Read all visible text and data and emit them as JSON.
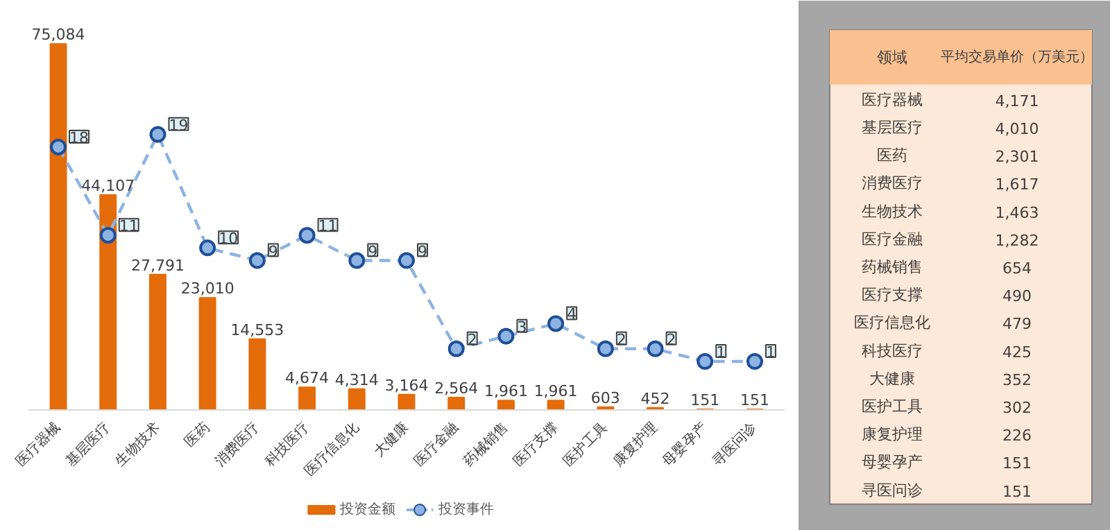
{
  "chart_data": [
    {
      "type": "bar",
      "categories": [
        "医疗器械",
        "基层医疗",
        "生物技术",
        "医药",
        "消费医疗",
        "科技医疗",
        "医疗信息化",
        "大健康",
        "医疗金融",
        "药械销售",
        "医疗支撑",
        "医护工具",
        "康复护理",
        "母婴孕产",
        "寻医问诊"
      ],
      "series": [
        {
          "name": "投资金额",
          "type": "bar",
          "color": "#e46c0a",
          "values": [
            75084,
            44107,
            27791,
            23010,
            14553,
            4674,
            4314,
            3164,
            2564,
            1961,
            1961,
            603,
            452,
            151,
            151
          ],
          "value_labels": [
            "75,084",
            "44,107",
            "27,791",
            "23,010",
            "14,553",
            "4,674",
            "4,314",
            "3,164",
            "2,564",
            "1,961",
            "1,961",
            "603",
            "452",
            "151",
            "151"
          ]
        },
        {
          "name": "投资事件",
          "type": "line",
          "axis": "y2",
          "color": "#8db4e2",
          "line_style": "dashed",
          "marker": "circle",
          "values": [
            18,
            11,
            19,
            10,
            9,
            11,
            9,
            9,
            2,
            3,
            4,
            2,
            2,
            1,
            1
          ]
        }
      ],
      "data_labels": true,
      "tick_labels": "x",
      "legend": "bottom",
      "grid": false
    },
    {
      "type": "other",
      "xlabel": "领域",
      "ylabel": "平均交易单价（万美元）",
      "categories": [
        "医疗器械",
        "基层医疗",
        "医药",
        "消费医疗",
        "生物技术",
        "医疗金融",
        "药械销售",
        "医疗支撑",
        "医疗信息化",
        "科技医疗",
        "大健康",
        "医护工具",
        "康复护理",
        "母婴孕产",
        "寻医问诊"
      ],
      "value_labels": [
        "4,171",
        "4,010",
        "2,301",
        "1,617",
        "1,463",
        "1,282",
        "654",
        "490",
        "479",
        "425",
        "352",
        "302",
        "226",
        "151",
        "151"
      ]
    }
  ]
}
